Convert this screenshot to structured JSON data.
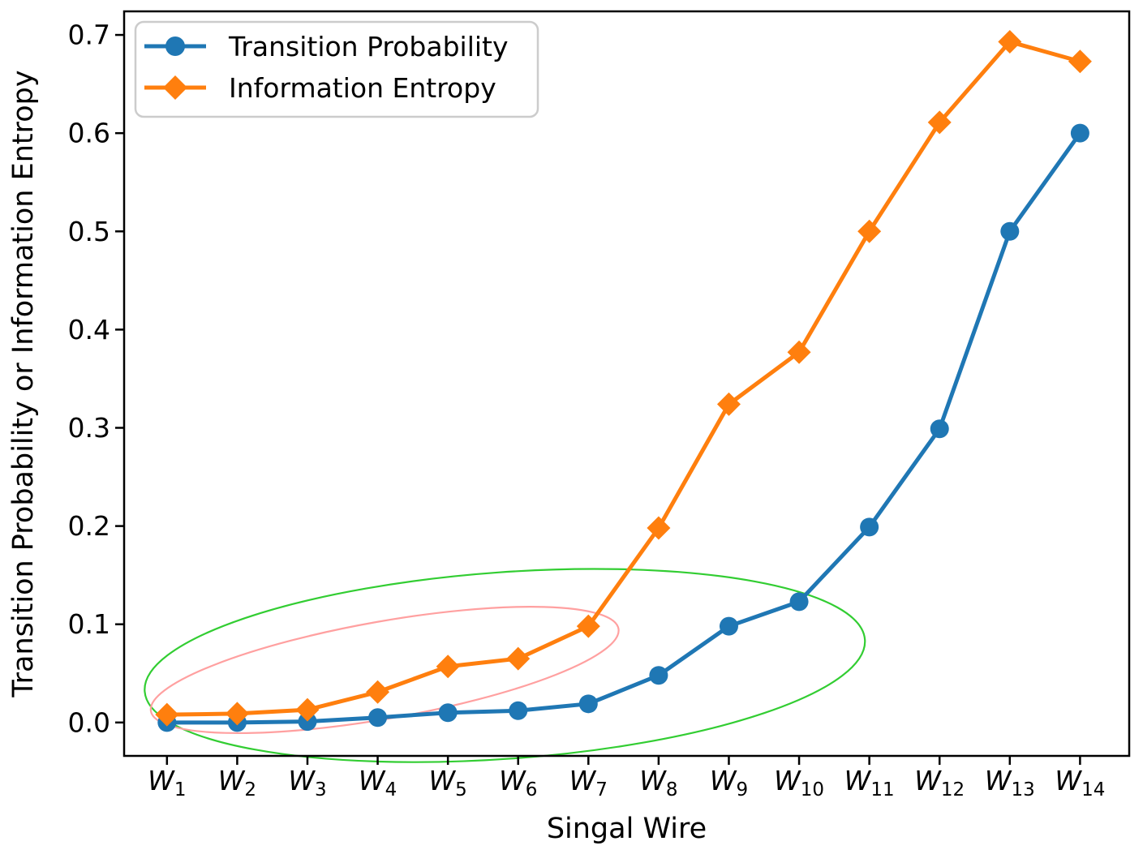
{
  "figure": {
    "background": "#ffffff",
    "text_color": "#000000"
  },
  "chart_data": {
    "type": "line",
    "title": "",
    "xlabel": "Singal Wire",
    "ylabel": "Transition Probability or Information Entropy",
    "categories": [
      {
        "base": "W",
        "sub": "1"
      },
      {
        "base": "W",
        "sub": "2"
      },
      {
        "base": "W",
        "sub": "3"
      },
      {
        "base": "W",
        "sub": "4"
      },
      {
        "base": "W",
        "sub": "5"
      },
      {
        "base": "W",
        "sub": "6"
      },
      {
        "base": "W",
        "sub": "7"
      },
      {
        "base": "W",
        "sub": "8"
      },
      {
        "base": "W",
        "sub": "9"
      },
      {
        "base": "W",
        "sub": "10"
      },
      {
        "base": "W",
        "sub": "11"
      },
      {
        "base": "W",
        "sub": "12"
      },
      {
        "base": "W",
        "sub": "13"
      },
      {
        "base": "W",
        "sub": "14"
      }
    ],
    "x": [
      1,
      2,
      3,
      4,
      5,
      6,
      7,
      8,
      9,
      10,
      11,
      12,
      13,
      14
    ],
    "series": [
      {
        "name": "Transition Probability",
        "color": "#1f77b4",
        "marker": "circle",
        "values": [
          0.0,
          0.0,
          0.001,
          0.005,
          0.01,
          0.012,
          0.019,
          0.048,
          0.098,
          0.123,
          0.199,
          0.299,
          0.5,
          0.6
        ]
      },
      {
        "name": "Information Entropy",
        "color": "#ff7f0e",
        "marker": "diamond",
        "values": [
          0.008,
          0.009,
          0.013,
          0.031,
          0.057,
          0.065,
          0.098,
          0.198,
          0.324,
          0.377,
          0.5,
          0.611,
          0.693,
          0.673
        ]
      }
    ],
    "yticks": [
      "0.0",
      "0.1",
      "0.2",
      "0.3",
      "0.4",
      "0.5",
      "0.6",
      "0.7"
    ],
    "ytick_values": [
      0.0,
      0.1,
      0.2,
      0.3,
      0.4,
      0.5,
      0.6,
      0.7
    ],
    "ylim": [
      -0.034,
      0.724
    ],
    "xlim": [
      0.39,
      14.7
    ],
    "grid": false,
    "legend": {
      "position": "upper left",
      "entries": [
        "Transition Probability",
        "Information Entropy"
      ]
    },
    "annotations": [
      {
        "type": "ellipse",
        "name": "green-ellipse",
        "color": "#32cd32",
        "cx": 5.81,
        "cy": 0.058,
        "rx": 5.14,
        "ry": 0.095,
        "rotation_screen_deg": -4.1,
        "stroke_width": 2.2
      },
      {
        "type": "ellipse",
        "name": "pink-ellipse",
        "color": "#ffa0a0",
        "cx": 4.1,
        "cy": 0.0535,
        "rx": 3.38,
        "ry": 0.0495,
        "rotation_screen_deg": -10,
        "stroke_width": 2.2
      }
    ]
  }
}
